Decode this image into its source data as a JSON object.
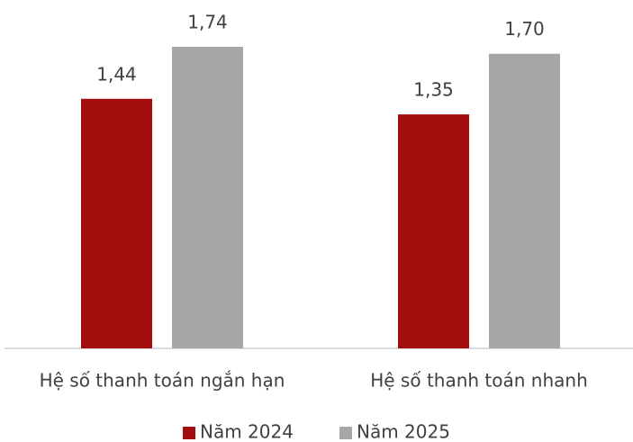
{
  "chart_data": {
    "type": "bar",
    "categories": [
      "Hệ số thanh toán ngắn hạn",
      "Hệ số thanh toán nhanh"
    ],
    "series": [
      {
        "name": "Năm 2024",
        "color": "#a20e0e",
        "values": [
          1.44,
          1.35
        ],
        "value_labels": [
          "1,44",
          "1,35"
        ]
      },
      {
        "name": "Năm 2025",
        "color": "#a6a6a6",
        "values": [
          1.74,
          1.7
        ],
        "value_labels": [
          "1,74",
          "1,70"
        ]
      }
    ],
    "legend": "bottom"
  }
}
